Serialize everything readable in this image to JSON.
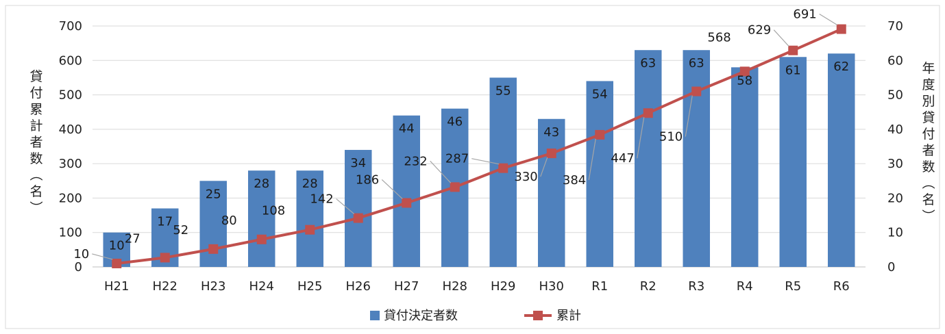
{
  "chart_data": {
    "type": "bar",
    "categories": [
      "H21",
      "H22",
      "H23",
      "H24",
      "H25",
      "H26",
      "H27",
      "H28",
      "H29",
      "H30",
      "R1",
      "R2",
      "R3",
      "R4",
      "R5",
      "R6"
    ],
    "series": [
      {
        "name": "貸付決定者数",
        "type": "bar",
        "axis": "right",
        "color": "#4f81bd",
        "values": [
          10,
          17,
          25,
          28,
          28,
          34,
          44,
          46,
          55,
          43,
          54,
          63,
          63,
          58,
          61,
          62
        ]
      },
      {
        "name": "累計",
        "type": "line",
        "axis": "left",
        "color": "#c0504d",
        "values": [
          10,
          27,
          52,
          80,
          108,
          142,
          186,
          232,
          287,
          330,
          384,
          447,
          510,
          568,
          629,
          691
        ]
      }
    ],
    "y_left": {
      "label": "貸付累計者数（名）",
      "ylim": [
        0,
        700
      ],
      "ticks": [
        "0",
        "100",
        "200",
        "300",
        "400",
        "500",
        "600",
        "700"
      ]
    },
    "y_right": {
      "label": "年度別貸付者数（名）",
      "ylim": [
        0,
        70
      ],
      "ticks": [
        "0",
        "10",
        "20",
        "30",
        "40",
        "50",
        "60",
        "70"
      ]
    },
    "grid": true,
    "legend": "bottom"
  }
}
